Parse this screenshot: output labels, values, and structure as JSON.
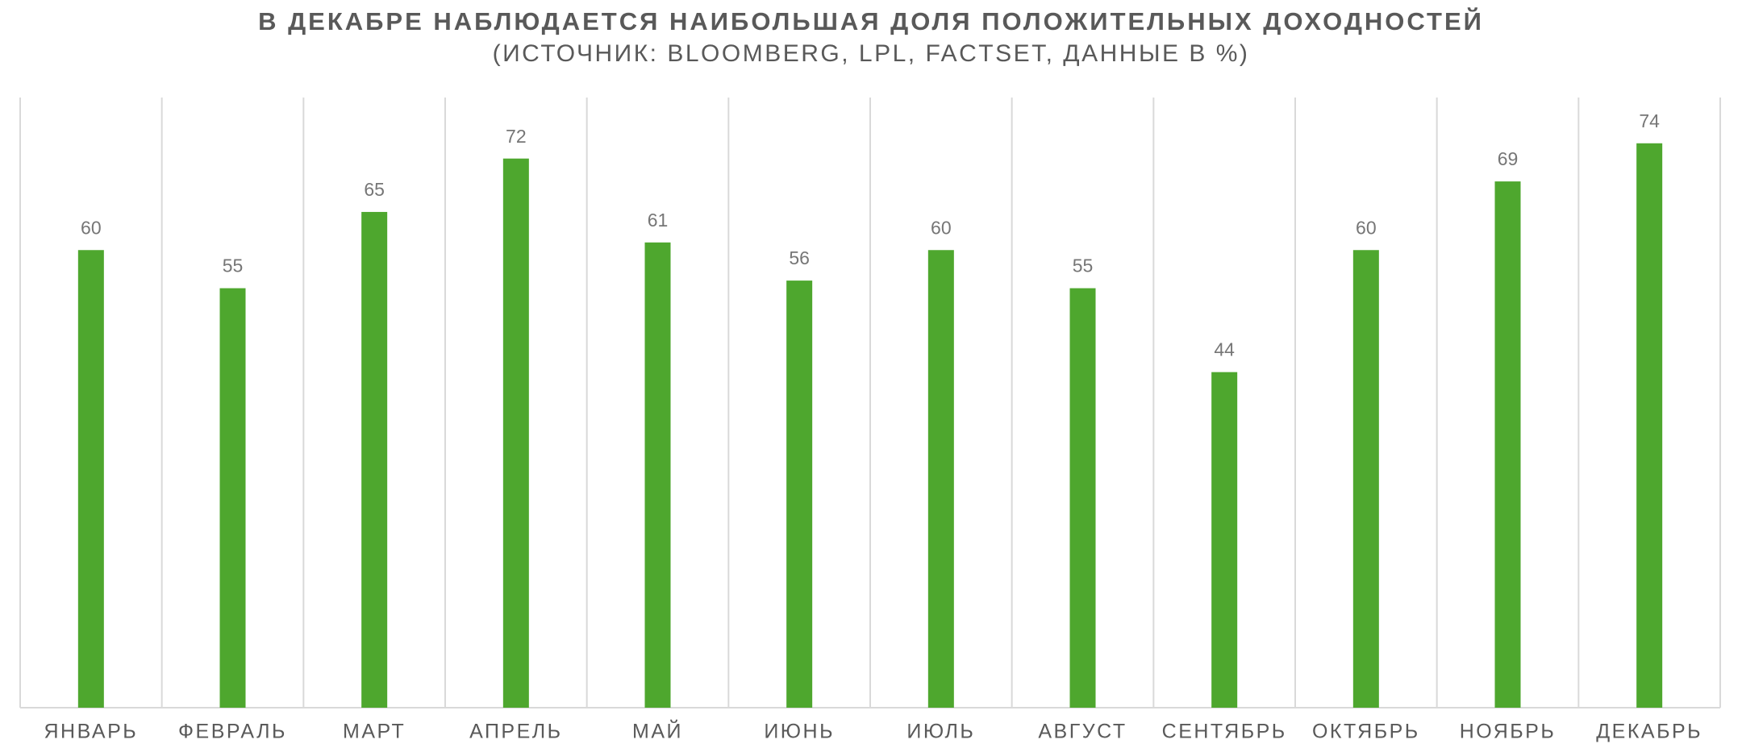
{
  "chart_data": {
    "type": "bar",
    "title": "В ДЕКАБРЕ НАБЛЮДАЕТСЯ НАИБОЛЬШАЯ ДОЛЯ ПОЛОЖИТЕЛЬНЫХ ДОХОДНОСТЕЙ",
    "subtitle": "(ИСТОЧНИК: BLOOMBERG, LPL, FACTSET, ДАННЫЕ В %)",
    "categories": [
      "ЯНВАРЬ",
      "ФЕВРАЛЬ",
      "МАРТ",
      "АПРЕЛЬ",
      "МАЙ",
      "ИЮНЬ",
      "ИЮЛЬ",
      "АВГУСТ",
      "СЕНТЯБРЬ",
      "ОКТЯБРЬ",
      "НОЯБРЬ",
      "ДЕКАБРЬ"
    ],
    "values": [
      60,
      55,
      65,
      72,
      61,
      56,
      60,
      55,
      44,
      60,
      69,
      74
    ],
    "color": "#4ea72e",
    "ylim": [
      0,
      80
    ],
    "grid": true
  }
}
